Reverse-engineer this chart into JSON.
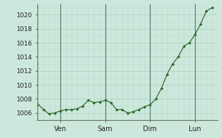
{
  "x_values": [
    0,
    1,
    2,
    3,
    4,
    5,
    6,
    7,
    8,
    9,
    10,
    11,
    12,
    13,
    14,
    15,
    16,
    17,
    18,
    19,
    20,
    21,
    22,
    23,
    24,
    25,
    26,
    27,
    28,
    29,
    30,
    31
  ],
  "y_values": [
    1007.3,
    1006.5,
    1005.9,
    1006.0,
    1006.3,
    1006.5,
    1006.5,
    1006.6,
    1007.0,
    1007.8,
    1007.5,
    1007.6,
    1007.8,
    1007.5,
    1006.5,
    1006.5,
    1006.0,
    1006.2,
    1006.5,
    1006.9,
    1007.2,
    1008.0,
    1009.5,
    1011.5,
    1013.0,
    1014.0,
    1015.5,
    1016.0,
    1017.2,
    1018.7,
    1020.5,
    1021.0
  ],
  "day_ticks": [
    4,
    12,
    20,
    28
  ],
  "day_labels": [
    "Ven",
    "Sam",
    "Dim",
    "Lun"
  ],
  "vline_positions": [
    4,
    12,
    20,
    28
  ],
  "xlim": [
    0,
    32
  ],
  "ylim": [
    1005.0,
    1021.5
  ],
  "yticks": [
    1006,
    1008,
    1010,
    1012,
    1014,
    1016,
    1018,
    1020
  ],
  "line_color": "#2d6a2d",
  "marker_color": "#2d6a2d",
  "bg_color": "#cce8dc",
  "vline_color": "#4a7060",
  "grid_major_color": "#aacfbf",
  "grid_minor_color": "#bbdacc",
  "tick_fontsize": 6.5,
  "label_fontsize": 7.0
}
